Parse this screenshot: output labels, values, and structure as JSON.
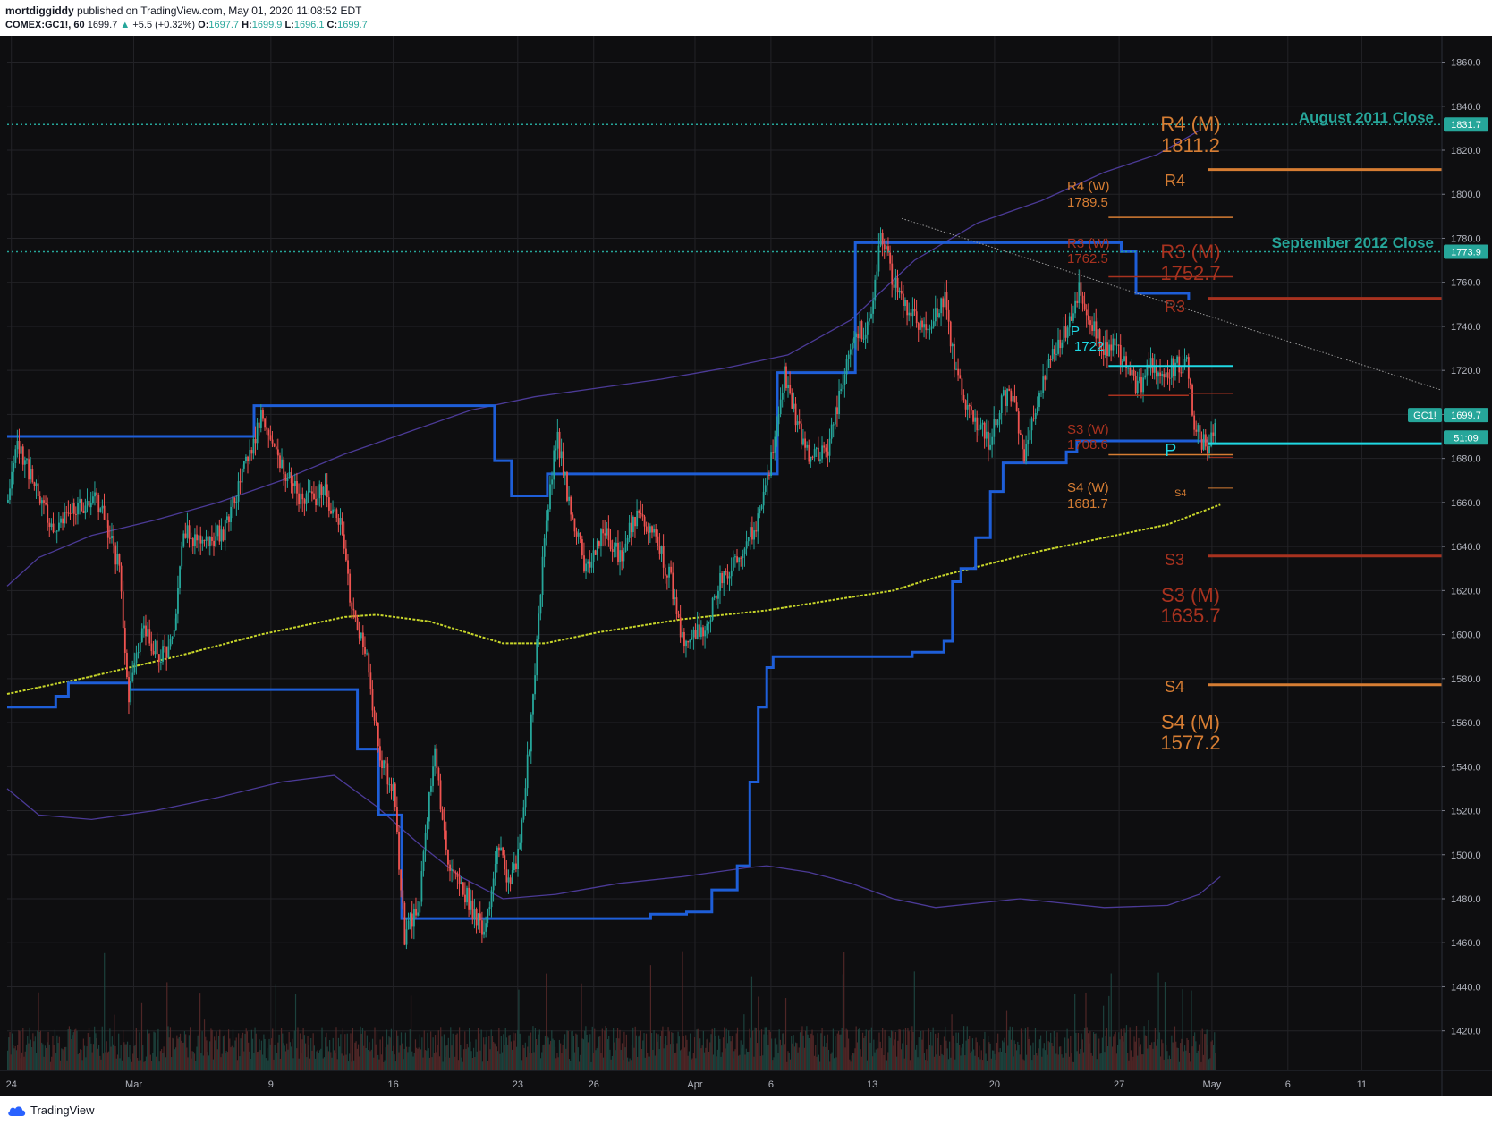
{
  "header": {
    "author": "mortdiggiddy",
    "published": "published on TradingView.com, May 01, 2020 11:08:52 EDT",
    "symbol": "COMEX:GC1!, 60",
    "last": "1699.7",
    "change": "+5.5 (+0.32%)",
    "o_label": "O:",
    "o_val": "1697.7",
    "h_label": "H:",
    "h_val": "1699.9",
    "l_label": "L:",
    "l_val": "1696.1",
    "c_label": "C:",
    "c_val": "1699.7"
  },
  "footer": {
    "brand": "TradingView"
  },
  "colors": {
    "background": "#0e0e10",
    "grid": "#232327",
    "up": "#26a69a",
    "down": "#ef5350",
    "blue_step": "#1e5ed8",
    "purple_band": "#4b3a96",
    "ma": "#c8d62a",
    "teal": "#26a69a",
    "orange": "#d67d33",
    "red": "#a8321f",
    "pivot": "#1fd8e3"
  },
  "chart_data": {
    "type": "candlestick",
    "symbol": "COMEX:GC1!",
    "interval": "60",
    "ylim": [
      1402,
      1872
    ],
    "x_range": [
      0,
      68
    ],
    "yticks": [
      1420,
      1440,
      1460,
      1480,
      1500,
      1520,
      1540,
      1560,
      1580,
      1600,
      1620,
      1640,
      1660,
      1680,
      1700,
      1720,
      1740,
      1760,
      1780,
      1800,
      1820,
      1840,
      1860
    ],
    "xticks": [
      {
        "label": "24",
        "x": 0.2
      },
      {
        "label": "Mar",
        "x": 6.0
      },
      {
        "label": "9",
        "x": 12.5
      },
      {
        "label": "16",
        "x": 18.3
      },
      {
        "label": "23",
        "x": 24.2
      },
      {
        "label": "26",
        "x": 27.8
      },
      {
        "label": "Apr",
        "x": 32.6
      },
      {
        "label": "6",
        "x": 36.2
      },
      {
        "label": "13",
        "x": 41.0
      },
      {
        "label": "20",
        "x": 46.8
      },
      {
        "label": "27",
        "x": 52.7
      },
      {
        "label": "May",
        "x": 57.1
      },
      {
        "label": "6",
        "x": 60.7
      },
      {
        "label": "11",
        "x": 64.2
      }
    ],
    "price_path": [
      [
        0.0,
        1660
      ],
      [
        0.4,
        1690
      ],
      [
        1.2,
        1668
      ],
      [
        2.2,
        1648
      ],
      [
        3.0,
        1655
      ],
      [
        4.2,
        1662
      ],
      [
        5.3,
        1630
      ],
      [
        5.7,
        1572
      ],
      [
        6.4,
        1603
      ],
      [
        7.2,
        1590
      ],
      [
        7.9,
        1598
      ],
      [
        8.3,
        1648
      ],
      [
        9.3,
        1640
      ],
      [
        10.3,
        1648
      ],
      [
        11.2,
        1675
      ],
      [
        12.0,
        1700
      ],
      [
        13.0,
        1675
      ],
      [
        14.0,
        1660
      ],
      [
        15.0,
        1665
      ],
      [
        15.8,
        1648
      ],
      [
        16.3,
        1612
      ],
      [
        17.0,
        1588
      ],
      [
        17.6,
        1545
      ],
      [
        18.3,
        1528
      ],
      [
        18.8,
        1462
      ],
      [
        19.5,
        1480
      ],
      [
        20.2,
        1547
      ],
      [
        20.9,
        1495
      ],
      [
        21.8,
        1480
      ],
      [
        22.6,
        1462
      ],
      [
        23.2,
        1508
      ],
      [
        23.7,
        1485
      ],
      [
        24.2,
        1500
      ],
      [
        24.8,
        1560
      ],
      [
        25.4,
        1640
      ],
      [
        26.0,
        1692
      ],
      [
        26.6,
        1660
      ],
      [
        27.4,
        1628
      ],
      [
        28.2,
        1648
      ],
      [
        29.0,
        1635
      ],
      [
        29.8,
        1655
      ],
      [
        30.7,
        1643
      ],
      [
        31.4,
        1625
      ],
      [
        32.0,
        1596
      ],
      [
        33.0,
        1602
      ],
      [
        33.8,
        1625
      ],
      [
        34.8,
        1640
      ],
      [
        35.6,
        1652
      ],
      [
        36.2,
        1680
      ],
      [
        36.8,
        1720
      ],
      [
        37.4,
        1695
      ],
      [
        38.0,
        1682
      ],
      [
        38.8,
        1682
      ],
      [
        39.7,
        1720
      ],
      [
        40.3,
        1738
      ],
      [
        40.8,
        1738
      ],
      [
        41.4,
        1784
      ],
      [
        41.9,
        1762
      ],
      [
        42.7,
        1745
      ],
      [
        43.5,
        1738
      ],
      [
        44.4,
        1752
      ],
      [
        45.0,
        1715
      ],
      [
        45.8,
        1698
      ],
      [
        46.5,
        1688
      ],
      [
        47.1,
        1707
      ],
      [
        47.6,
        1708
      ],
      [
        48.2,
        1680
      ],
      [
        48.8,
        1706
      ],
      [
        49.6,
        1730
      ],
      [
        50.3,
        1742
      ],
      [
        50.8,
        1758
      ],
      [
        51.4,
        1740
      ],
      [
        51.9,
        1730
      ],
      [
        52.6,
        1730
      ],
      [
        53.1,
        1718
      ],
      [
        53.6,
        1712
      ],
      [
        54.2,
        1722
      ],
      [
        54.8,
        1720
      ],
      [
        55.4,
        1722
      ],
      [
        55.9,
        1722
      ],
      [
        56.2,
        1697
      ],
      [
        56.6,
        1688
      ],
      [
        56.9,
        1684
      ],
      [
        57.3,
        1700
      ]
    ],
    "step_line_blue": [
      [
        0.0,
        1567
      ],
      [
        2.3,
        1567
      ],
      [
        2.3,
        1572
      ],
      [
        2.9,
        1572
      ],
      [
        2.9,
        1578
      ],
      [
        5.8,
        1578
      ],
      [
        5.8,
        1575
      ],
      [
        16.6,
        1575
      ],
      [
        16.6,
        1548
      ],
      [
        17.6,
        1548
      ],
      [
        17.6,
        1518
      ],
      [
        18.7,
        1518
      ],
      [
        18.7,
        1471
      ],
      [
        30.5,
        1471
      ],
      [
        30.5,
        1473
      ],
      [
        32.2,
        1473
      ],
      [
        32.2,
        1474
      ],
      [
        33.4,
        1474
      ],
      [
        33.4,
        1484
      ],
      [
        34.6,
        1484
      ],
      [
        34.6,
        1495
      ],
      [
        35.2,
        1495
      ],
      [
        35.2,
        1533
      ],
      [
        35.6,
        1533
      ],
      [
        35.6,
        1567
      ],
      [
        36.0,
        1567
      ],
      [
        36.0,
        1585
      ],
      [
        36.3,
        1585
      ],
      [
        36.3,
        1590
      ],
      [
        42.9,
        1590
      ],
      [
        42.9,
        1592
      ],
      [
        44.4,
        1592
      ],
      [
        44.4,
        1597
      ],
      [
        44.8,
        1597
      ],
      [
        44.8,
        1624
      ],
      [
        45.2,
        1624
      ],
      [
        45.2,
        1630
      ],
      [
        45.9,
        1630
      ],
      [
        45.9,
        1644
      ],
      [
        46.6,
        1644
      ],
      [
        46.6,
        1665
      ],
      [
        47.2,
        1665
      ],
      [
        47.2,
        1678
      ],
      [
        50.2,
        1678
      ],
      [
        50.2,
        1683
      ],
      [
        50.7,
        1683
      ],
      [
        50.7,
        1688
      ],
      [
        56.9,
        1688
      ]
    ],
    "step_line_blue_upper": [
      [
        0.0,
        1690
      ],
      [
        11.7,
        1690
      ],
      [
        11.7,
        1704
      ],
      [
        23.1,
        1704
      ],
      [
        23.1,
        1679
      ],
      [
        23.9,
        1679
      ],
      [
        23.9,
        1663
      ],
      [
        25.6,
        1663
      ],
      [
        25.6,
        1673
      ],
      [
        36.5,
        1673
      ],
      [
        36.5,
        1719
      ],
      [
        40.2,
        1719
      ],
      [
        40.2,
        1778
      ],
      [
        52.8,
        1778
      ],
      [
        52.8,
        1774
      ],
      [
        53.5,
        1774
      ],
      [
        53.5,
        1755
      ],
      [
        56.0,
        1755
      ],
      [
        56.0,
        1752
      ]
    ],
    "ma_line": [
      [
        0.0,
        1573
      ],
      [
        4.0,
        1581
      ],
      [
        8.0,
        1590
      ],
      [
        12.0,
        1600
      ],
      [
        16.0,
        1608
      ],
      [
        17.5,
        1609
      ],
      [
        20.0,
        1606
      ],
      [
        23.5,
        1596
      ],
      [
        25.5,
        1596
      ],
      [
        28.0,
        1601
      ],
      [
        32.0,
        1607
      ],
      [
        36.0,
        1611
      ],
      [
        40.0,
        1617
      ],
      [
        42.0,
        1620
      ],
      [
        44.0,
        1626
      ],
      [
        46.5,
        1632
      ],
      [
        49.0,
        1638
      ],
      [
        52.0,
        1644
      ],
      [
        55.0,
        1650
      ],
      [
        57.5,
        1659
      ]
    ],
    "band_upper": [
      [
        0.0,
        1622
      ],
      [
        1.5,
        1635
      ],
      [
        4.0,
        1645
      ],
      [
        7.0,
        1652
      ],
      [
        10.0,
        1660
      ],
      [
        13.0,
        1670
      ],
      [
        16.0,
        1682
      ],
      [
        19.0,
        1692
      ],
      [
        22.0,
        1702
      ],
      [
        25.0,
        1708
      ],
      [
        28.0,
        1712
      ],
      [
        31.0,
        1716
      ],
      [
        34.0,
        1721
      ],
      [
        37.0,
        1727
      ],
      [
        40.0,
        1743
      ],
      [
        43.0,
        1770
      ],
      [
        46.0,
        1787
      ],
      [
        49.0,
        1797
      ],
      [
        52.0,
        1810
      ],
      [
        54.5,
        1818
      ],
      [
        56.5,
        1829
      ]
    ],
    "band_lower": [
      [
        0.0,
        1530
      ],
      [
        1.5,
        1518
      ],
      [
        4.0,
        1516
      ],
      [
        7.0,
        1520
      ],
      [
        10.0,
        1526
      ],
      [
        13.0,
        1533
      ],
      [
        15.5,
        1536
      ],
      [
        17.5,
        1522
      ],
      [
        19.5,
        1505
      ],
      [
        21.5,
        1490
      ],
      [
        23.5,
        1480
      ],
      [
        26.0,
        1482
      ],
      [
        29.0,
        1487
      ],
      [
        32.0,
        1490
      ],
      [
        35.0,
        1494
      ],
      [
        36.0,
        1495
      ],
      [
        38.0,
        1492
      ],
      [
        40.0,
        1487
      ],
      [
        42.0,
        1480
      ],
      [
        44.0,
        1476
      ],
      [
        46.0,
        1478
      ],
      [
        48.0,
        1480
      ],
      [
        50.0,
        1478
      ],
      [
        52.0,
        1476
      ],
      [
        55.0,
        1477
      ],
      [
        56.5,
        1482
      ],
      [
        57.5,
        1490
      ]
    ],
    "horizontal_levels": [
      {
        "name": "August 2011 Close",
        "value": 1831.7,
        "x_from": 0,
        "x_to": 68,
        "style": "dotted",
        "color": "#26a69a"
      },
      {
        "name": "September 2012 Close",
        "value": 1773.9,
        "x_from": 0,
        "x_to": 68,
        "style": "dotted",
        "color": "#26a69a"
      },
      {
        "name": "R4",
        "value": 1811.2,
        "x_from": 56.9,
        "x_to": 68,
        "color": "#d67d33",
        "width": 3
      },
      {
        "name": "R3",
        "value": 1752.7,
        "x_from": 56.9,
        "x_to": 68,
        "color": "#a8321f",
        "width": 3
      },
      {
        "name": "S3",
        "value": 1635.7,
        "x_from": 56.9,
        "x_to": 68,
        "color": "#a8321f",
        "width": 3
      },
      {
        "name": "S4",
        "value": 1577.2,
        "x_from": 56.9,
        "x_to": 68,
        "color": "#d67d33",
        "width": 3
      },
      {
        "name": "P",
        "value": 1686.7,
        "x_from": 56.9,
        "x_to": 68,
        "color": "#1fd8e3",
        "width": 3
      },
      {
        "name": "R4 (W)",
        "value": 1789.5,
        "x_from": 52.2,
        "x_to": 58.1,
        "color": "#d67d33",
        "width": 1.5
      },
      {
        "name": "R3 (W)",
        "value": 1762.5,
        "x_from": 52.2,
        "x_to": 58.1,
        "color": "#a8321f",
        "width": 1.5
      },
      {
        "name": "P (W)",
        "value": 1722,
        "x_from": 52.2,
        "x_to": 58.1,
        "color": "#1fd8e3",
        "width": 2
      },
      {
        "name": "R (D)",
        "value": 1709.5,
        "x_from": 56.0,
        "x_to": 58.1,
        "color": "#a8321f",
        "width": 1
      },
      {
        "name": "S3 (W)",
        "value": 1708.6,
        "x_from": 52.2,
        "x_to": 56.0,
        "color": "#a8321f",
        "width": 1.5
      },
      {
        "name": "S4 (W)",
        "value": 1681.7,
        "x_from": 52.2,
        "x_to": 58.1,
        "color": "#d67d33",
        "width": 1.5
      },
      {
        "name": "S3 (D)",
        "value": 1680.5,
        "x_from": 57.0,
        "x_to": 58.1,
        "color": "#a8321f",
        "width": 1
      },
      {
        "name": "S4 (D)",
        "value": 1666.5,
        "x_from": 56.9,
        "x_to": 58.1,
        "color": "#d67d33",
        "width": 1
      }
    ],
    "trendline": {
      "from": [
        42.4,
        1789
      ],
      "to": [
        68.0,
        1711
      ]
    },
    "annotations": [
      {
        "text": "R4 (M)",
        "value2": "1811.2",
        "color": "#d67d33"
      },
      {
        "text": "R3 (M)",
        "value2": "1752.7",
        "color": "#a8321f"
      },
      {
        "text": "S3 (M)",
        "value2": "1635.7",
        "color": "#a8321f"
      },
      {
        "text": "S4 (M)",
        "value2": "1577.2",
        "color": "#d67d33"
      },
      {
        "text": "R4 (W)",
        "value2": "1789.5",
        "color": "#d67d33"
      },
      {
        "text": "R3 (W)",
        "value2": "1762.5",
        "color": "#a8321f"
      },
      {
        "text": "S3 (W)",
        "value2": "1708.6",
        "color": "#a8321f"
      },
      {
        "text": "S4 (W)",
        "value2": "1681.7",
        "color": "#d67d33"
      },
      {
        "text": "P",
        "value2": "1722",
        "color": "#1fd8e3"
      },
      {
        "text": "August 2011 Close",
        "color": "#26a69a"
      },
      {
        "text": "September 2012 Close",
        "color": "#26a69a"
      }
    ],
    "small_labels": [
      {
        "text": "R4",
        "color": "#d67d33"
      },
      {
        "text": "R3",
        "color": "#a8321f"
      },
      {
        "text": "S3",
        "color": "#a8321f"
      },
      {
        "text": "S4",
        "color": "#d67d33"
      },
      {
        "text": "P",
        "color": "#1fd8e3"
      },
      {
        "text": "S4",
        "color": "#d67d33"
      }
    ],
    "price_badges": [
      {
        "text": "1831.7",
        "value": 1831.7,
        "bg": "#26a69a"
      },
      {
        "text": "1773.9",
        "value": 1773.9,
        "bg": "#26a69a"
      },
      {
        "text": "1699.7",
        "value": 1699.7,
        "bg": "#26a69a"
      },
      {
        "text": "51:09",
        "value": 1689.5,
        "bg": "#26a69a"
      }
    ],
    "symbol_badge": "GC1!",
    "last_price": 1699.7
  }
}
